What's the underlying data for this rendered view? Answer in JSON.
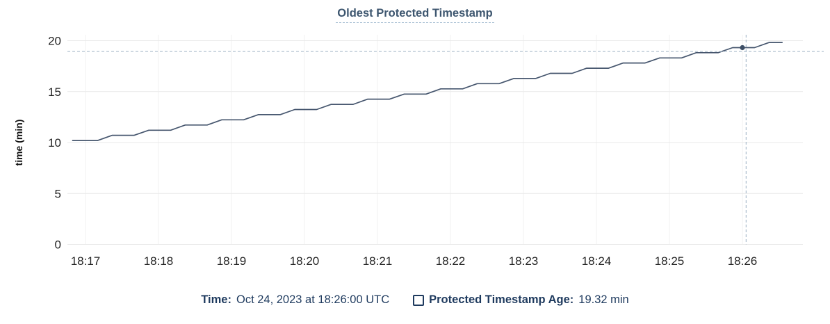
{
  "title": "Oldest Protected Timestamp",
  "footer": {
    "time_label": "Time:",
    "time_value": "Oct 24, 2023 at 18:26:00 UTC",
    "series_label": "Protected Timestamp Age:",
    "series_value": "19.32 min"
  },
  "colors": {
    "title_text": "#3d566f",
    "line": "#46566e",
    "hover_dot": "#3e4f66",
    "crosshair": "#9cb1c3",
    "footer_text": "#1e3a5e",
    "grid": "#e9e9e9",
    "tick_text": "#242424"
  },
  "chart_data": {
    "type": "line",
    "title": "Oldest Protected Timestamp",
    "xlabel": "",
    "ylabel": "time (min)",
    "ylim": [
      0,
      20
    ],
    "y_ticks": [
      0,
      5,
      10,
      15,
      20
    ],
    "x_ticks": [
      "18:17",
      "18:18",
      "18:19",
      "18:20",
      "18:21",
      "18:22",
      "18:23",
      "18:24",
      "18:25",
      "18:26"
    ],
    "x_range": [
      "18:16:49",
      "18:26:33"
    ],
    "grid": true,
    "legend_position": "bottom",
    "series": [
      {
        "name": "Protected Timestamp Age",
        "unit": "min",
        "points": [
          [
            "18:16:49",
            10.2
          ],
          [
            "18:17:10",
            10.2
          ],
          [
            "18:17:22",
            10.71
          ],
          [
            "18:17:40",
            10.71
          ],
          [
            "18:17:52",
            11.21
          ],
          [
            "18:18:10",
            11.21
          ],
          [
            "18:18:22",
            11.72
          ],
          [
            "18:18:40",
            11.72
          ],
          [
            "18:18:52",
            12.23
          ],
          [
            "18:19:10",
            12.23
          ],
          [
            "18:19:22",
            12.74
          ],
          [
            "18:19:40",
            12.74
          ],
          [
            "18:19:52",
            13.24
          ],
          [
            "18:20:10",
            13.24
          ],
          [
            "18:20:22",
            13.75
          ],
          [
            "18:20:40",
            13.75
          ],
          [
            "18:20:52",
            14.26
          ],
          [
            "18:21:10",
            14.26
          ],
          [
            "18:21:22",
            14.76
          ],
          [
            "18:21:40",
            14.76
          ],
          [
            "18:21:52",
            15.27
          ],
          [
            "18:22:10",
            15.27
          ],
          [
            "18:22:22",
            15.78
          ],
          [
            "18:22:40",
            15.78
          ],
          [
            "18:22:52",
            16.29
          ],
          [
            "18:23:10",
            16.29
          ],
          [
            "18:23:22",
            16.79
          ],
          [
            "18:23:40",
            16.79
          ],
          [
            "18:23:52",
            17.3
          ],
          [
            "18:24:10",
            17.3
          ],
          [
            "18:24:22",
            17.81
          ],
          [
            "18:24:40",
            17.81
          ],
          [
            "18:24:52",
            18.31
          ],
          [
            "18:25:10",
            18.31
          ],
          [
            "18:25:22",
            18.82
          ],
          [
            "18:25:40",
            18.82
          ],
          [
            "18:25:52",
            19.32
          ],
          [
            "18:26:10",
            19.32
          ],
          [
            "18:26:22",
            19.82
          ],
          [
            "18:26:33",
            19.82
          ]
        ]
      }
    ],
    "hover": {
      "point_time": "18:26:00",
      "point_value": 19.32,
      "cursor_time": "18:26:03",
      "cursor_value": 18.94
    }
  }
}
